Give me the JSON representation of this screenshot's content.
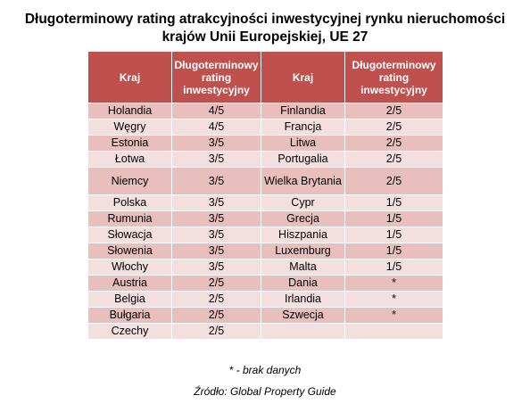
{
  "title": {
    "line1": "Długoterminowy rating atrakcyjności inwestycyjnej rynku nieruchomości",
    "line2": "krajów Unii Europejskiej, UE 27"
  },
  "table": {
    "headers": [
      "Kraj",
      "Długoterminowy rating inwestycyjny",
      "Kraj",
      "Długoterminowy rating inwestycyjny"
    ],
    "rows": [
      [
        "Holandia",
        "4/5",
        "Finlandia",
        "2/5"
      ],
      [
        "Węgry",
        "4/5",
        "Francja",
        "2/5"
      ],
      [
        "Estonia",
        "3/5",
        "Litwa",
        "2/5"
      ],
      [
        "Łotwa",
        "3/5",
        "Portugalia",
        "2/5"
      ],
      [
        "Niemcy",
        "3/5",
        "Wielka Brytania",
        "2/5"
      ],
      [
        "Polska",
        "3/5",
        "Cypr",
        "1/5"
      ],
      [
        "Rumunia",
        "3/5",
        "Grecja",
        "1/5"
      ],
      [
        "Słowacja",
        "3/5",
        "Hiszpania",
        "1/5"
      ],
      [
        "Słowenia",
        "3/5",
        "Luxemburg",
        "1/5"
      ],
      [
        "Włochy",
        "3/5",
        "Malta",
        "1/5"
      ],
      [
        "Austria",
        "2/5",
        "Dania",
        "*"
      ],
      [
        "Belgia",
        "2/5",
        "Irlandia",
        "*"
      ],
      [
        "Bułgaria",
        "2/5",
        "Szwecja",
        "*"
      ],
      [
        "Czechy",
        "2/5",
        "",
        ""
      ]
    ]
  },
  "footnote": "* - brak danych",
  "source": "Źródło: Global Property Guide",
  "colors": {
    "header_bg": "#c0504d",
    "row_odd_bg": "#e9bfbe",
    "row_even_bg": "#f4dfdf"
  }
}
